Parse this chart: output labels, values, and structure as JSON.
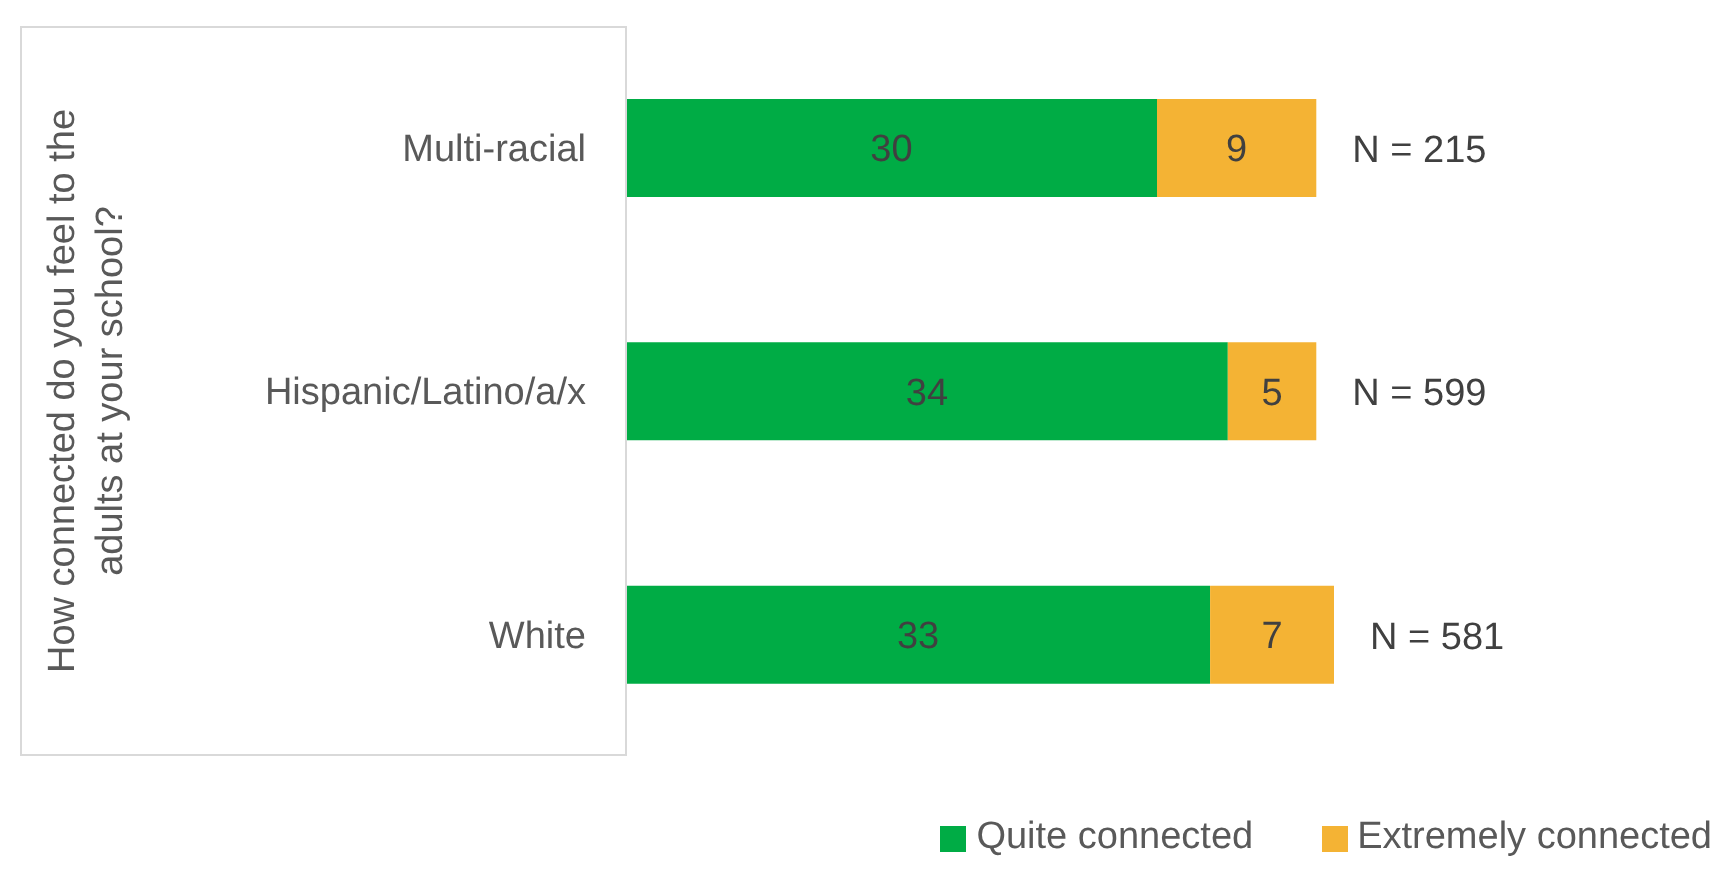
{
  "chart_data": {
    "type": "bar",
    "orientation": "horizontal",
    "stacked": true,
    "ylabel": "How connected do you feel to the adults at your school?",
    "categories": [
      "Multi-racial",
      "Hispanic/Latino/a/x",
      "White"
    ],
    "series": [
      {
        "name": "Quite connected",
        "color": "#00ac45",
        "values": [
          30,
          34,
          33
        ]
      },
      {
        "name": "Extremely connected",
        "color": "#f4b334",
        "values": [
          9,
          5,
          7
        ]
      }
    ],
    "annotations": [
      "N = 215",
      "N = 599",
      "N = 581"
    ],
    "data_labels": true,
    "legend": "bottom right"
  }
}
